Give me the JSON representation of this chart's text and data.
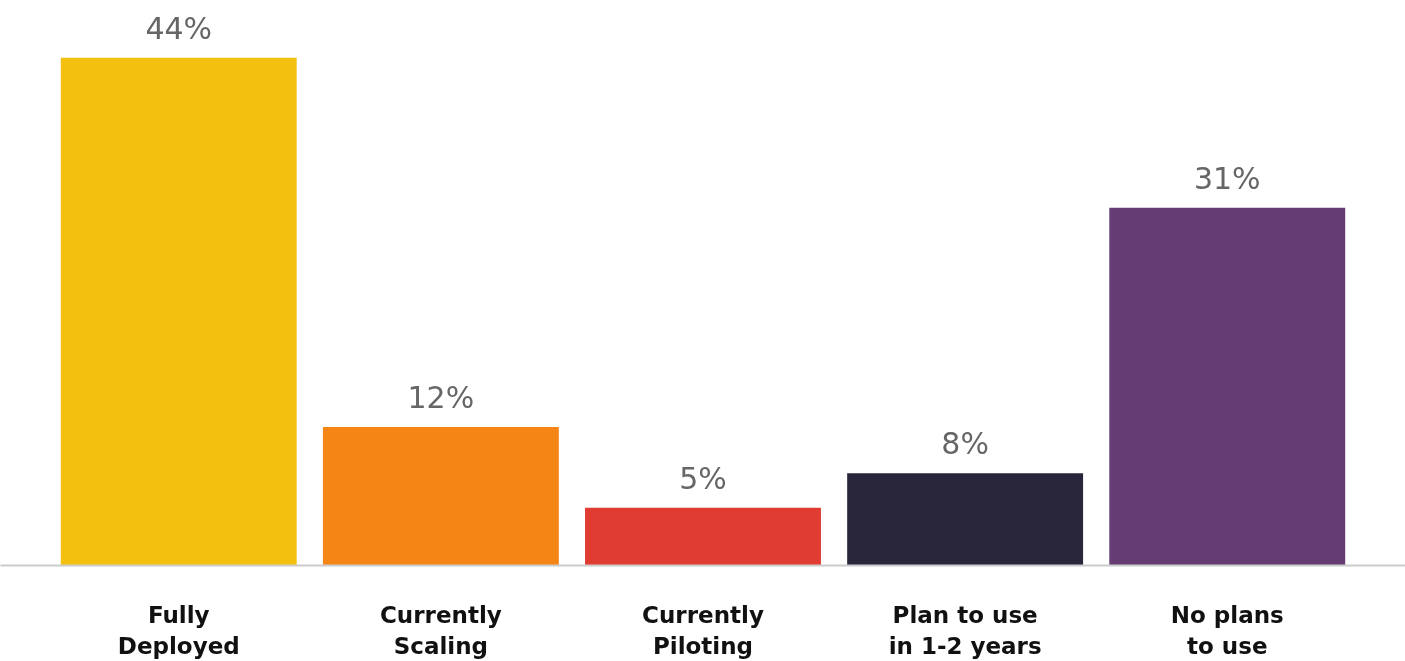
{
  "chart_data": {
    "type": "bar",
    "categories": [
      "Fully\nDeployed",
      "Currently\nScaling",
      "Currently\nPiloting",
      "Plan to use\nin 1-2 years",
      "No plans\nto use"
    ],
    "values": [
      44,
      12,
      5,
      8,
      31
    ],
    "value_labels": [
      "44%",
      "12%",
      "5%",
      "8%",
      "31%"
    ],
    "colors": [
      "#f4c010",
      "#f58514",
      "#e03c31",
      "#29263b",
      "#663c74"
    ],
    "grid": false
  }
}
